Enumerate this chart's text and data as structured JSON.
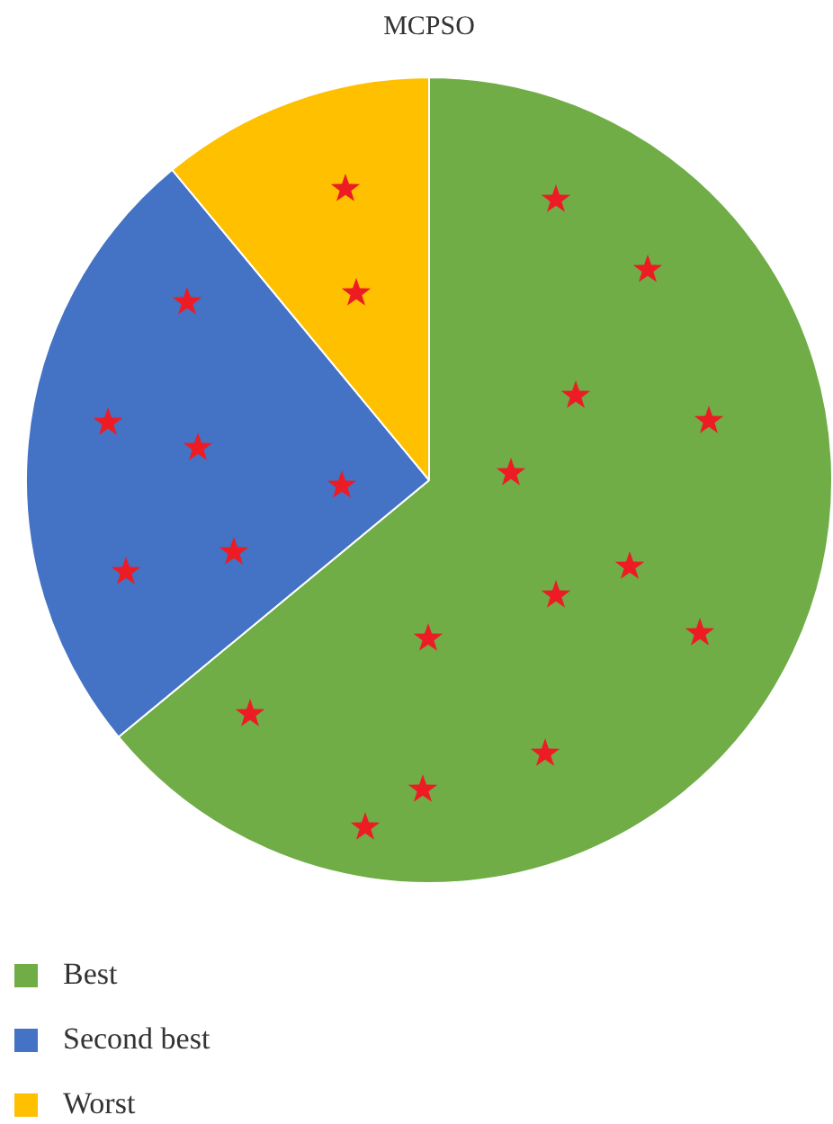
{
  "chart_data": {
    "type": "pie",
    "title": "MCPSO",
    "categories": [
      "Best",
      "Second best",
      "Worst"
    ],
    "values": [
      64,
      25,
      11
    ],
    "colors": [
      "#70ad47",
      "#4472c4",
      "#ffc000"
    ],
    "legend": "bottom left"
  }
}
